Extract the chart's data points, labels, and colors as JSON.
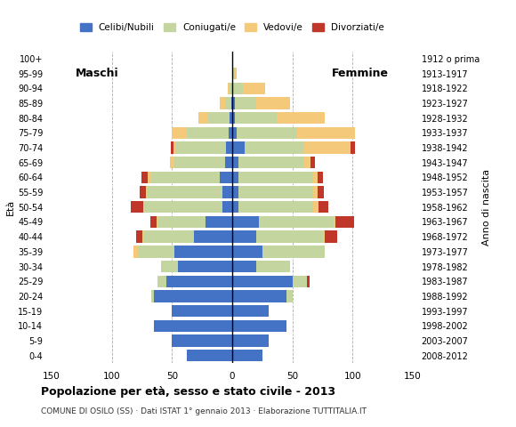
{
  "age_groups": [
    "0-4",
    "5-9",
    "10-14",
    "15-19",
    "20-24",
    "25-29",
    "30-34",
    "35-39",
    "40-44",
    "45-49",
    "50-54",
    "55-59",
    "60-64",
    "65-69",
    "70-74",
    "75-79",
    "80-84",
    "85-89",
    "90-94",
    "95-99",
    "100+"
  ],
  "birth_years": [
    "2008-2012",
    "2003-2007",
    "1998-2002",
    "1993-1997",
    "1988-1992",
    "1983-1987",
    "1978-1982",
    "1973-1977",
    "1968-1972",
    "1963-1967",
    "1958-1962",
    "1953-1957",
    "1948-1952",
    "1943-1947",
    "1938-1942",
    "1933-1937",
    "1928-1932",
    "1923-1927",
    "1918-1922",
    "1913-1917",
    "1912 o prima"
  ],
  "colors": {
    "celibi": "#4472c4",
    "coniugati": "#c5d5a0",
    "vedovi": "#f5c97a",
    "divorziati": "#c0372a"
  },
  "maschi": {
    "celibi": [
      38,
      50,
      65,
      50,
      65,
      55,
      45,
      48,
      32,
      22,
      8,
      8,
      10,
      6,
      5,
      3,
      2,
      1,
      0,
      0,
      0
    ],
    "coniugati": [
      0,
      0,
      0,
      0,
      2,
      7,
      14,
      30,
      42,
      40,
      65,
      62,
      58,
      42,
      42,
      35,
      18,
      5,
      2,
      0,
      0
    ],
    "vedovi": [
      0,
      0,
      0,
      0,
      0,
      0,
      0,
      4,
      1,
      1,
      1,
      2,
      2,
      4,
      2,
      12,
      8,
      4,
      2,
      0,
      0
    ],
    "divorziati": [
      0,
      0,
      0,
      0,
      0,
      0,
      0,
      0,
      5,
      5,
      10,
      5,
      5,
      0,
      2,
      0,
      0,
      0,
      0,
      0,
      0
    ]
  },
  "femmine": {
    "celibi": [
      25,
      30,
      45,
      30,
      45,
      50,
      20,
      25,
      20,
      22,
      5,
      5,
      5,
      5,
      10,
      4,
      2,
      2,
      1,
      0,
      0
    ],
    "coniugati": [
      0,
      0,
      0,
      0,
      5,
      12,
      28,
      52,
      55,
      62,
      62,
      62,
      62,
      55,
      50,
      50,
      35,
      18,
      8,
      2,
      0
    ],
    "vedovi": [
      0,
      0,
      0,
      0,
      0,
      0,
      0,
      0,
      2,
      2,
      5,
      4,
      4,
      5,
      38,
      48,
      40,
      28,
      18,
      2,
      0
    ],
    "divorziati": [
      0,
      0,
      0,
      0,
      0,
      2,
      0,
      0,
      10,
      15,
      8,
      5,
      4,
      4,
      4,
      0,
      0,
      0,
      0,
      0,
      0
    ]
  },
  "xlim": 150,
  "title": "Popolazione per età, sesso e stato civile - 2013",
  "subtitle": "COMUNE DI OSILO (SS) · Dati ISTAT 1° gennaio 2013 · Elaborazione TUTTITALIA.IT",
  "ylabel_left": "Età",
  "ylabel_right": "Anno di nascita",
  "label_maschi": "Maschi",
  "label_femmine": "Femmine",
  "legend_labels": [
    "Celibi/Nubili",
    "Coniugati/e",
    "Vedovi/e",
    "Divorziati/e"
  ]
}
